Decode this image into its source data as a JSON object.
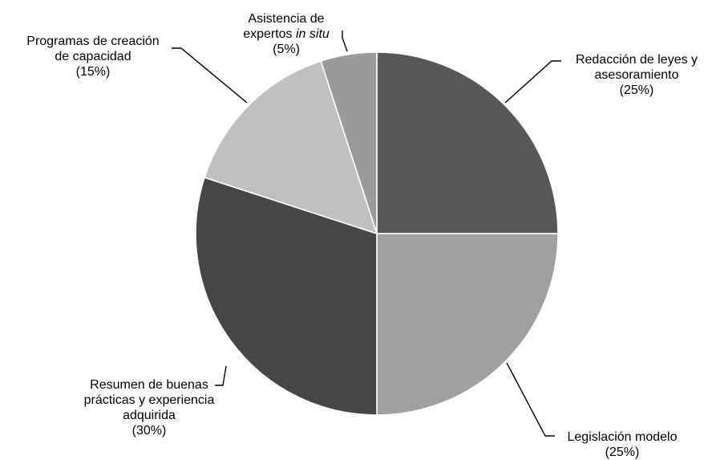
{
  "chart_data": {
    "type": "pie",
    "start_angle_deg": 0,
    "direction": "clockwise",
    "slices": [
      {
        "lines": [
          [
            "Redacción de leyes y"
          ],
          [
            "asesoramiento"
          ],
          [
            "(25%)"
          ]
        ],
        "value": 25,
        "color": "#585858"
      },
      {
        "lines": [
          [
            "Legislación modelo"
          ],
          [
            "(25%)"
          ]
        ],
        "value": 25,
        "color": "#a0a0a0"
      },
      {
        "lines": [
          [
            "Resumen de buenas"
          ],
          [
            "prácticas y experiencia"
          ],
          [
            "adquirida"
          ],
          [
            "(30%)"
          ]
        ],
        "value": 30,
        "color": "#464646"
      },
      {
        "lines": [
          [
            "Programas de creación"
          ],
          [
            "de capacidad"
          ],
          [
            "(15%)"
          ]
        ],
        "value": 15,
        "color": "#c0c0c0"
      },
      {
        "lines": [
          [
            "Asistencia de"
          ],
          [
            "expertos ",
            "in situ"
          ],
          [
            "(5%)"
          ]
        ],
        "value": 5,
        "color": "#9a9a9a"
      }
    ]
  }
}
